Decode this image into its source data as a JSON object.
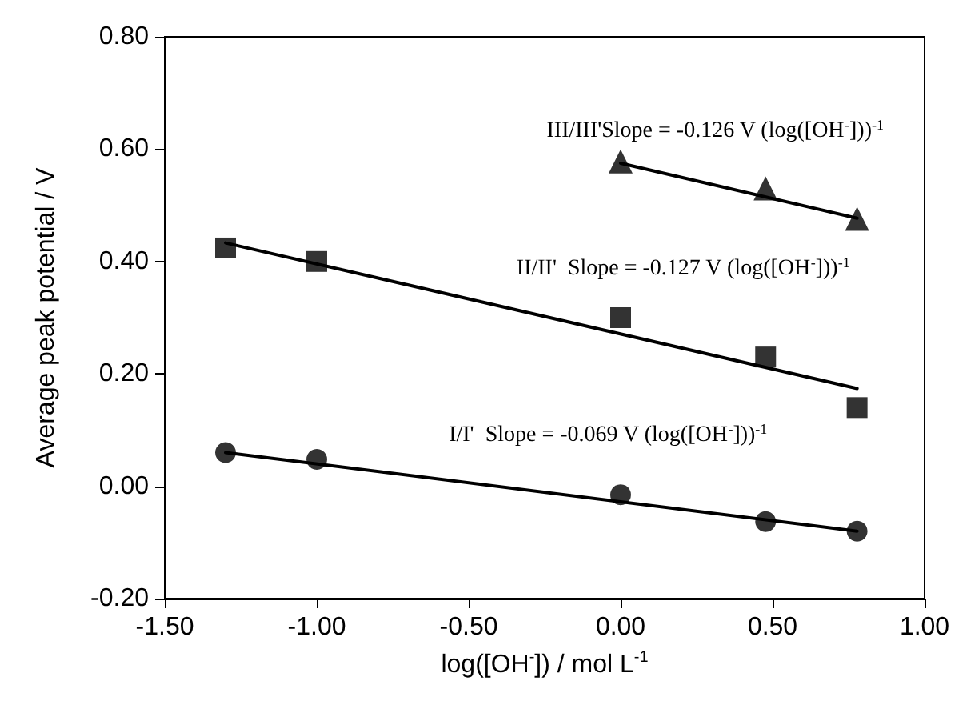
{
  "chart_data": {
    "type": "scatter",
    "xlabel": "log([OH$^{-}$]) / mol L$^{-1}$",
    "ylabel": "Average peak potential / V",
    "xlim": [
      -1.5,
      1.0
    ],
    "xticks": [
      {
        "value": -1.5,
        "label": "-1.50"
      },
      {
        "value": -1.0,
        "label": "-1.00"
      },
      {
        "value": -0.5,
        "label": "-0.50"
      },
      {
        "value": 0,
        "label": "0.00"
      },
      {
        "value": 0.5,
        "label": "0.50"
      },
      {
        "value": 1.0,
        "label": "1.00"
      }
    ],
    "ylim": [
      -0.2,
      0.8
    ],
    "yticks": [
      {
        "value": -0.2,
        "label": "-0.20"
      },
      {
        "value": 0,
        "label": "0.00"
      },
      {
        "value": 0.2,
        "label": "0.20"
      },
      {
        "value": 0.4,
        "label": "0.40"
      },
      {
        "value": 0.6,
        "label": "0.60"
      },
      {
        "value": 0.8,
        "label": "0.80"
      }
    ],
    "grid": false,
    "x": [
      -1.3,
      -1.0,
      0,
      0.477,
      0.778
    ],
    "series": [
      {
        "color": "#000000",
        "marker": "circle",
        "values": [
          0.06,
          0.048,
          -0.015,
          -0.063,
          -0.08
        ]
      },
      {
        "color": "#000000",
        "marker": "square",
        "values": [
          0.424,
          0.4,
          0.3,
          0.23,
          0.14
        ]
      },
      {
        "color": "#000000",
        "marker": "triangle",
        "x": [
          0,
          0.477,
          0.778
        ],
        "values": [
          0.578,
          0.53,
          0.476
        ]
      },
      {
        "type": "line",
        "color": "#000000",
        "marker": "none",
        "line_style": "solid",
        "x": [
          -1.3,
          0.778
        ],
        "values": [
          0.06,
          -0.08
        ]
      },
      {
        "type": "line",
        "color": "#000000",
        "marker": "none",
        "line_style": "solid",
        "x": [
          -1.3,
          0.778
        ],
        "values": [
          0.433,
          0.174
        ]
      },
      {
        "type": "line",
        "color": "#000000",
        "marker": "none",
        "line_style": "solid",
        "x": [
          0,
          0.778
        ],
        "values": [
          0.575,
          0.477
        ]
      }
    ],
    "annotations": [
      "III/III'Slope = -0.126 V (log([OH$^{-}$]))$^{-1}$",
      "II/II'  Slope = -0.127 V (log([OH$^{-}$]))$^{-1}$",
      "I/I'  Slope = -0.069 V (log([OH$^{-}$]))$^{-1}$"
    ]
  }
}
